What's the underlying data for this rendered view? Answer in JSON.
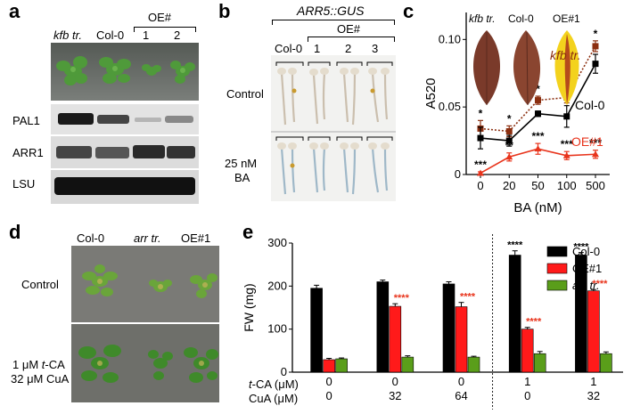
{
  "panels": {
    "a": {
      "letter": "a",
      "group": "OE#",
      "cols": [
        "kfb tr.",
        "Col-0",
        "1",
        "2"
      ],
      "blots": [
        "PAL1",
        "ARR1",
        "LSU"
      ]
    },
    "b": {
      "letter": "b",
      "title": "ARR5::GUS",
      "group": "OE#",
      "cols": [
        "Col-0",
        "1",
        "2",
        "3"
      ],
      "rows": [
        "Control",
        "25 nM",
        "BA"
      ]
    },
    "c": {
      "letter": "c",
      "inset": [
        "kfb tr.",
        "Col-0",
        "OE#1"
      ]
    },
    "d": {
      "letter": "d",
      "cols": [
        "Col-0",
        "arr tr.",
        "OE#1"
      ],
      "rows": [
        "Control",
        "1 μM t-CA",
        "32 μM CuA"
      ]
    },
    "e": {
      "letter": "e",
      "row_labels": [
        "t-CA (μM)",
        "CuA (μM)"
      ],
      "tca": [
        "0",
        "0",
        "0",
        "1",
        "1"
      ],
      "cua": [
        "0",
        "32",
        "64",
        "0",
        "32"
      ]
    }
  },
  "chart_data": [
    {
      "id": "c",
      "type": "line",
      "xlabel": "BA (nM)",
      "ylabel": "A520",
      "x": [
        "0",
        "20",
        "50",
        "100",
        "500"
      ],
      "ylim": [
        0,
        0.12
      ],
      "yticks": [
        "0",
        "0.05",
        "0.10"
      ],
      "series": [
        {
          "name": "kfb tr.",
          "color": "#8B2E0F",
          "dashed": true,
          "values": [
            0.034,
            0.032,
            0.055,
            0.057,
            0.095
          ],
          "errors": [
            0.006,
            0.004,
            0.003,
            0.004,
            0.004
          ],
          "marks": [
            "*",
            "*",
            "*",
            "*",
            "*"
          ]
        },
        {
          "name": "Col-0",
          "color": "#000000",
          "dashed": false,
          "values": [
            0.027,
            0.025,
            0.045,
            0.043,
            0.082
          ],
          "errors": [
            0.008,
            0.004,
            0.002,
            0.008,
            0.007
          ],
          "marks": [
            "",
            "",
            "",
            "",
            ""
          ]
        },
        {
          "name": "OE#1",
          "color": "#E8341C",
          "dashed": false,
          "values": [
            0.001,
            0.013,
            0.019,
            0.014,
            0.015
          ],
          "errors": [
            0.001,
            0.003,
            0.004,
            0.003,
            0.003
          ],
          "marks": [
            "***",
            "**",
            "***",
            "***",
            "***"
          ]
        }
      ]
    },
    {
      "id": "e",
      "type": "bar",
      "ylabel": "FW (mg)",
      "ylim": [
        0,
        300
      ],
      "yticks": [
        "0",
        "100",
        "200",
        "300"
      ],
      "categories": [
        "0/0",
        "0/32",
        "0/64",
        "1/0",
        "1/32"
      ],
      "series": [
        {
          "name": "Col-0",
          "color": "#000000",
          "values": [
            195,
            210,
            205,
            272,
            272
          ],
          "errors": [
            7,
            4,
            5,
            10,
            6
          ],
          "marks": [
            "",
            "",
            "",
            "****",
            "****"
          ]
        },
        {
          "name": "OE#1",
          "color": "#FF1A1A",
          "values": [
            29,
            153,
            152,
            100,
            189
          ],
          "errors": [
            3,
            6,
            10,
            4,
            3
          ],
          "marks": [
            "",
            "****",
            "****",
            "****",
            "****"
          ]
        },
        {
          "name": "arr tr.",
          "color": "#5A9E1A",
          "values": [
            31,
            35,
            35,
            43,
            43
          ],
          "errors": [
            2,
            3,
            2,
            5,
            4
          ],
          "marks": [
            "",
            "",
            "",
            "",
            ""
          ]
        }
      ]
    }
  ]
}
